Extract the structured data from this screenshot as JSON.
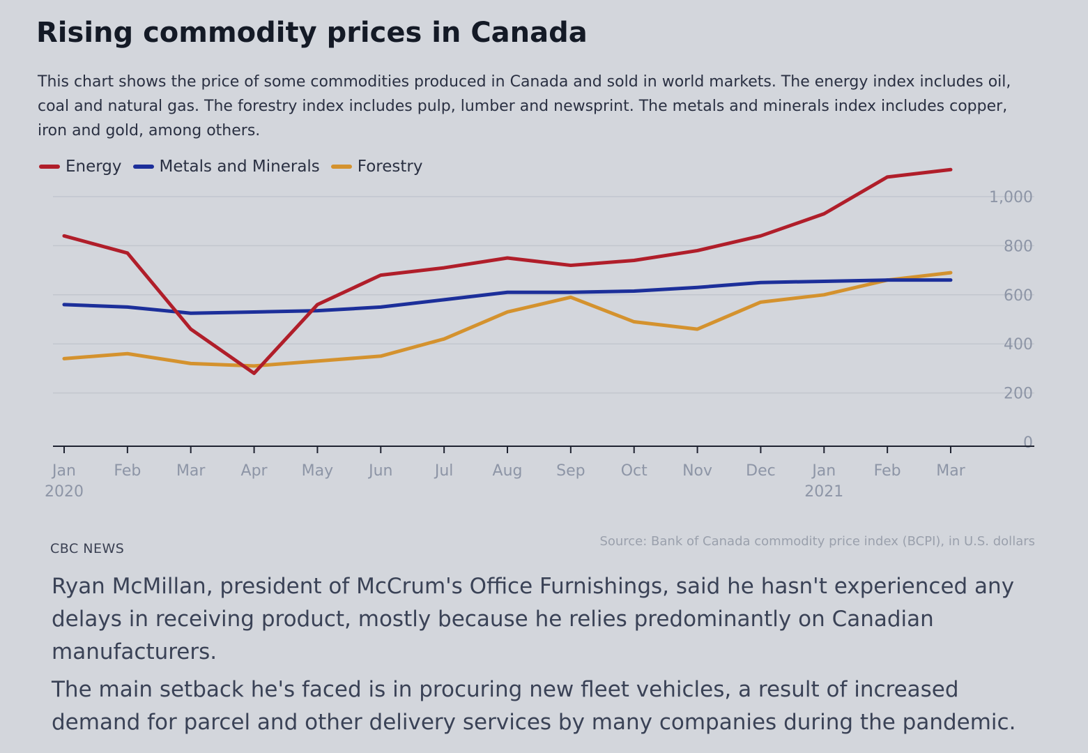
{
  "article": {
    "title": "Rising commodity prices in Canada",
    "subtitle": "This chart shows the price of some commodities produced in Canada and sold in world markets. The energy index includes oil, coal and natural gas. The forestry index includes pulp, lumber and newsprint. The metals and minerals index includes copper, iron and gold, among others.",
    "credit": "CBC NEWS",
    "source": "Source: Bank of Canada commodity price index (BCPI), in U.S. dollars",
    "paragraphs": [
      "Ryan McMillan, president of McCrum's Office Furnishings, said he hasn't experienced any delays in receiving product, mostly because he relies predominantly on Canadian manufacturers.",
      "The main setback he's faced is in procuring new fleet vehicles, a result of increased demand for parcel and other delivery services by many companies during the pandemic."
    ]
  },
  "chart_data": {
    "type": "line",
    "title": "Rising commodity prices in Canada",
    "xlabel": "",
    "ylabel": "",
    "ylim": [
      0,
      1000
    ],
    "yticks": [
      0,
      200,
      400,
      600,
      800,
      1000
    ],
    "ytick_labels": [
      "0",
      "200",
      "400",
      "600",
      "800",
      "1,000"
    ],
    "categories": [
      "Jan",
      "Feb",
      "Mar",
      "Apr",
      "May",
      "Jun",
      "Jul",
      "Aug",
      "Sep",
      "Oct",
      "Nov",
      "Dec",
      "Jan",
      "Feb",
      "Mar"
    ],
    "year_labels": {
      "0": "2020",
      "12": "2021"
    },
    "grid": true,
    "legend_position": "top-left",
    "series": [
      {
        "name": "Energy",
        "color": "#b01e2a",
        "values": [
          840,
          770,
          460,
          280,
          560,
          680,
          710,
          750,
          720,
          740,
          780,
          840,
          930,
          1080,
          1110
        ]
      },
      {
        "name": "Metals and Minerals",
        "color": "#1c2f9a",
        "values": [
          560,
          550,
          525,
          530,
          535,
          550,
          580,
          610,
          610,
          615,
          630,
          650,
          655,
          660,
          660
        ]
      },
      {
        "name": "Forestry",
        "color": "#d4922e",
        "values": [
          340,
          360,
          320,
          310,
          330,
          350,
          420,
          530,
          590,
          490,
          460,
          570,
          600,
          660,
          690
        ]
      }
    ]
  }
}
